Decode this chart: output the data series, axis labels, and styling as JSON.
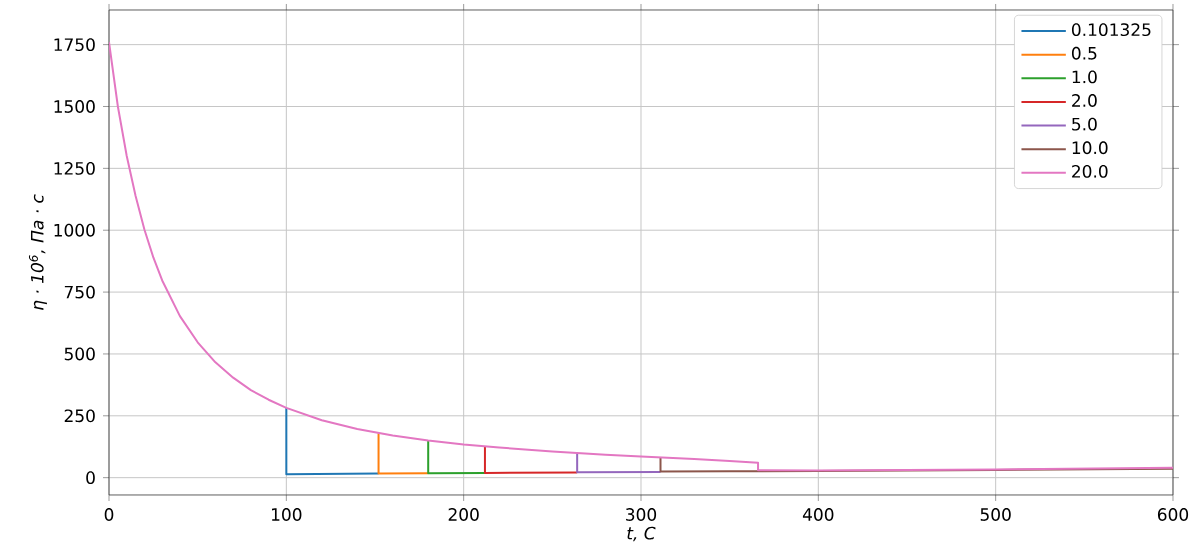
{
  "chart_data": {
    "type": "line",
    "xlabel": "t, C",
    "ylabel": "η · 10$^{6}$, Па · с",
    "xlim": [
      0,
      600
    ],
    "ylim": [
      -70,
      1890
    ],
    "xticks": [
      0,
      100,
      200,
      300,
      400,
      500,
      600
    ],
    "yticks": [
      0,
      250,
      500,
      750,
      1000,
      1250,
      1500,
      1750
    ],
    "grid": true,
    "legend": "top right",
    "line_style": "solid",
    "series": [
      {
        "name": "0.101325",
        "color": "#1f77b4",
        "x": [
          100,
          100,
          152
        ],
        "values": [
          282,
          14,
          17
        ]
      },
      {
        "name": "0.5",
        "color": "#ff7f0e",
        "x": [
          152,
          152,
          180
        ],
        "values": [
          180,
          17,
          18
        ]
      },
      {
        "name": "1.0",
        "color": "#2ca02c",
        "x": [
          180,
          180,
          212
        ],
        "values": [
          150,
          18,
          19
        ]
      },
      {
        "name": "2.0",
        "color": "#d62728",
        "x": [
          212,
          212,
          264
        ],
        "values": [
          127,
          19,
          21
        ]
      },
      {
        "name": "5.0",
        "color": "#9467bd",
        "x": [
          264,
          264,
          311
        ],
        "values": [
          100,
          22,
          23
        ]
      },
      {
        "name": "10.0",
        "color": "#8c564b",
        "x": [
          311,
          311,
          350,
          400,
          500,
          600
        ],
        "values": [
          82,
          25,
          26,
          27,
          31,
          36
        ]
      },
      {
        "name": "20.0",
        "color": "#e377c2",
        "x": [
          0,
          5,
          10,
          15,
          20,
          25,
          30,
          40,
          50,
          60,
          70,
          80,
          90,
          100,
          120,
          140,
          160,
          180,
          200,
          220,
          250,
          280,
          300,
          330,
          350,
          366,
          366,
          400,
          500,
          600
        ],
        "values": [
          1760,
          1500,
          1300,
          1138,
          1002,
          890,
          797,
          653,
          547,
          466,
          404,
          354,
          315,
          282,
          232,
          197,
          170,
          150,
          134,
          122,
          106,
          93,
          86,
          75,
          67,
          60,
          30,
          29,
          33,
          40
        ]
      }
    ]
  }
}
